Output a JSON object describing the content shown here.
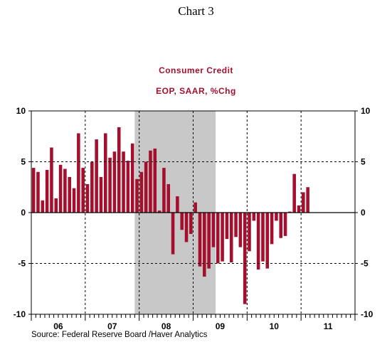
{
  "heading": "Chart 3",
  "source": "Source:  Federal Reserve Board /Haver Analytics",
  "colors": {
    "bar": "#a50f2d",
    "recession": "#c8c8c8",
    "title": "#a50f2d"
  },
  "chart_data": {
    "type": "bar",
    "title": "Consumer Credit",
    "subtitle": "EOP, SAAR, %Chg",
    "ylim": [
      -10,
      10
    ],
    "yticks": [
      -10,
      -5,
      0,
      5,
      10
    ],
    "ytick_labels": [
      "-10",
      "-5",
      "0",
      "5",
      "10"
    ],
    "xlabels": [
      "06",
      "07",
      "08",
      "09",
      "10",
      "11"
    ],
    "year_starts": [
      2006,
      2007,
      2008,
      2009,
      2010,
      2011
    ],
    "x_range": [
      2006.0,
      2012.0
    ],
    "recession": [
      2007.917,
      2009.417
    ],
    "grid": "dashed at year starts and y ticks",
    "values": [
      4.4,
      4.0,
      1.2,
      4.2,
      6.4,
      1.4,
      4.7,
      4.3,
      3.5,
      2.4,
      7.8,
      4.4,
      2.8,
      5.0,
      7.2,
      3.5,
      7.8,
      5.4,
      6.0,
      8.4,
      6.0,
      5.1,
      6.8,
      3.3,
      4.0,
      5.0,
      6.1,
      6.3,
      0.2,
      4.4,
      2.8,
      -4.1,
      1.6,
      -1.7,
      -2.9,
      -2.1,
      1.0,
      -5.3,
      -6.3,
      -5.5,
      -3.4,
      -5.0,
      -4.8,
      -2.6,
      -4.9,
      -2.4,
      -3.4,
      -9.0,
      -3.8,
      -0.8,
      -5.6,
      -4.8,
      -5.5,
      -3.1,
      -0.8,
      -2.5,
      -2.3,
      0.1,
      3.8,
      0.7,
      2.0,
      2.5
    ]
  }
}
